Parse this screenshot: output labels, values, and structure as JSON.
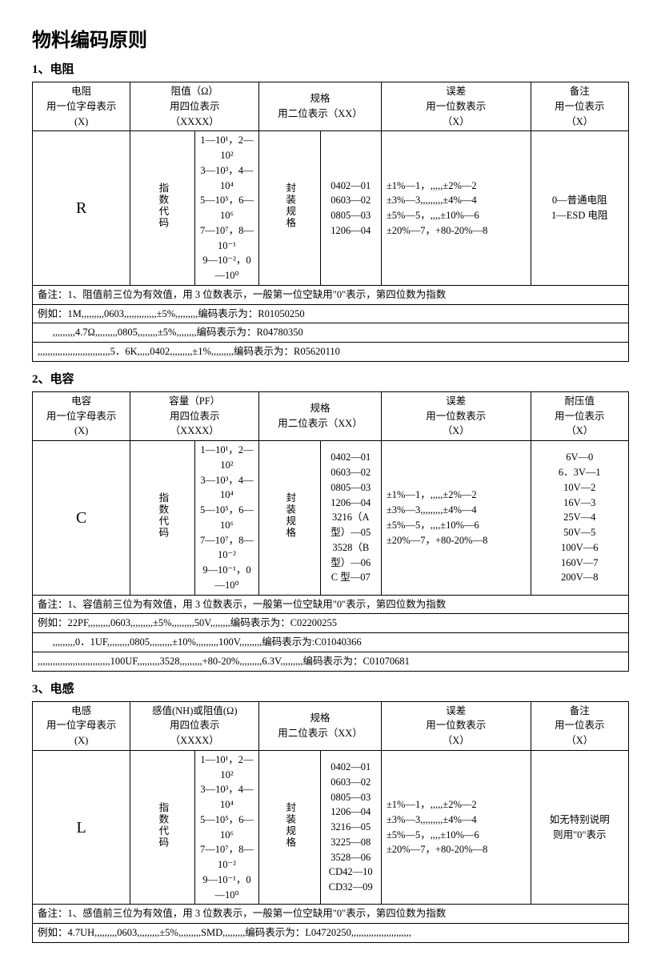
{
  "title": "物料编码原则",
  "sections": [
    {
      "num": "1、",
      "name": "电阻",
      "header": {
        "c1a": "电阻",
        "c1b": "用一位字母表示",
        "c1c": "(X)",
        "c2a": "阻值（Ω）",
        "c2b": "用四位表示",
        "c2c": "（XXXX）",
        "c3a": "规格",
        "c3b": "用二位表示（XX）",
        "c4a": "误差",
        "c4b": "用一位数表示",
        "c4c": "（X）",
        "c5a": "备注",
        "c5b": "用一位表示",
        "c5c": "（X）"
      },
      "row": {
        "letter": "R",
        "vlabel1": "指数代码",
        "codes": "1—10¹，2—10²<br>3—10³，4—10⁴<br>5—10⁵，6—10⁶<br>7—10⁷，8—10⁻¹<br>9—10⁻²，0—10⁰",
        "vlabel2": "封装规格",
        "pkg": "0402—01<br>0603—02<br>0805—03<br>1206—04",
        "err": "±1%—1，,,,,,±2%—2<br>±3%—3,,,,,,,,,±4%—4<br>±5%—5，,,,,±10%—6<br>±20%—7，+80-20%—8",
        "note": "0—普通电阻<br>1—ESD 电阻"
      },
      "notes": [
        "备注：1、阻值前三位为有效值，用 3 位数表示，一般第一位空缺用\"0\"表示，第四位数为指数",
        "例如：1M,,,,,,,,,0603,,,,,,,,,,,,,±5%,,,,,,,,,编码表示为：R01050250",
        "      ,,,,,,,,,4.7Ω,,,,,,,,,0805,,,,,,,,±5%,,,,,,,,编码表示为：R04780350",
        ",,,,,,,,,,,,,,,,,,,,,,,,,,,,,5．6K,,,,,0402,,,,,,,,,±1%,,,,,,,,,编码表示为：R05620110"
      ]
    },
    {
      "num": "2、",
      "name": "电容",
      "header": {
        "c1a": "电容",
        "c1b": "用一位字母表示",
        "c1c": "(X)",
        "c2a": "容量（PF）",
        "c2b": "用四位表示",
        "c2c": "（XXXX）",
        "c3a": "规格",
        "c3b": "用二位表示（XX）",
        "c4a": "误差",
        "c4b": "用一位数表示",
        "c4c": "（X）",
        "c5a": "耐压值",
        "c5b": "用一位表示",
        "c5c": "（X）"
      },
      "row": {
        "letter": "C",
        "vlabel1": "指数代码",
        "codes": "1—10¹，2—10²<br>3—10³，4—10⁴<br>5—10⁵，6—10⁶<br>7—10⁷，8—10⁻²<br>9—10⁻¹，0—10⁰",
        "vlabel2": "封装规格",
        "pkg": "0402—01<br>0603—02<br>0805—03<br>1206—04<br>3216（A 型）—05<br>3528（B 型）—06<br>C 型—07",
        "err": "±1%—1，,,,,,±2%—2<br>±3%—3,,,,,,,,,±4%—4<br>±5%—5，,,,,±10%—6<br>±20%—7，+80-20%—8",
        "note": "6V—0<br>6．3V—1<br>10V—2<br>16V—3<br>25V—4<br>50V—5<br>100V—6<br>160V—7<br>200V—8"
      },
      "notes": [
        "备注：1、容值前三位为有效值，用 3 位数表示，一般第一位空缺用\"0\"表示，第四位数为指数",
        "例如：22PF,,,,,,,,,0603,,,,,,,,,±5%,,,,,,,,,50V,,,,,,,,编码表示为：C02200255",
        "      ,,,,,,,,,0．1UF,,,,,,,,,0805,,,,,,,,,±10%,,,,,,,,,100V,,,,,,,,,编码表示为:C01040366",
        ",,,,,,,,,,,,,,,,,,,,,,,,,,,,,100UF,,,,,,,,,3528,,,,,,,,,+80-20%,,,,,,,,,6.3V,,,,,,,,,编码表示为：C01070681"
      ]
    },
    {
      "num": "3、",
      "name": "电感",
      "header": {
        "c1a": "电感",
        "c1b": "用一位字母表示",
        "c1c": "(X)",
        "c2a": "感值(NH)或阻值(Ω)",
        "c2b": "用四位表示",
        "c2c": "（XXXX）",
        "c3a": "规格",
        "c3b": "用二位表示（XX）",
        "c4a": "误差",
        "c4b": "用一位数表示",
        "c4c": "（X）",
        "c5a": "备注",
        "c5b": "用一位表示",
        "c5c": "（X）"
      },
      "row": {
        "letter": "L",
        "vlabel1": "指数代码",
        "codes": "1—10¹，2—10²<br>3—10³，4—10⁴<br>5—10⁵，6—10⁶<br>7—10⁷，8—10⁻²<br>9—10⁻¹，0—10⁰",
        "vlabel2": "封装规格",
        "pkg": "0402—01<br>0603—02<br>0805—03<br>1206—04<br>3216—05<br>3225—08<br>3528—06<br>CD42—10<br>CD32—09",
        "err": "±1%—1，,,,,,±2%—2<br>±3%—3,,,,,,,,,±4%—4<br>±5%—5，,,,,±10%—6<br>±20%—7，+80-20%—8",
        "note": "如无特别说明<br>则用\"0\"表示"
      },
      "notes": [
        "备注：1、感值前三位为有效值，用 3 位数表示，一般第一位空缺用\"0\"表示，第四位数为指数",
        "例如：4.7UH,,,,,,,,,0603,,,,,,,,,±5%,,,,,,,,,SMD,,,,,,,,,编码表示为：L04720250,,,,,,,,,,,,,,,,,,,,,,,,"
      ]
    }
  ]
}
